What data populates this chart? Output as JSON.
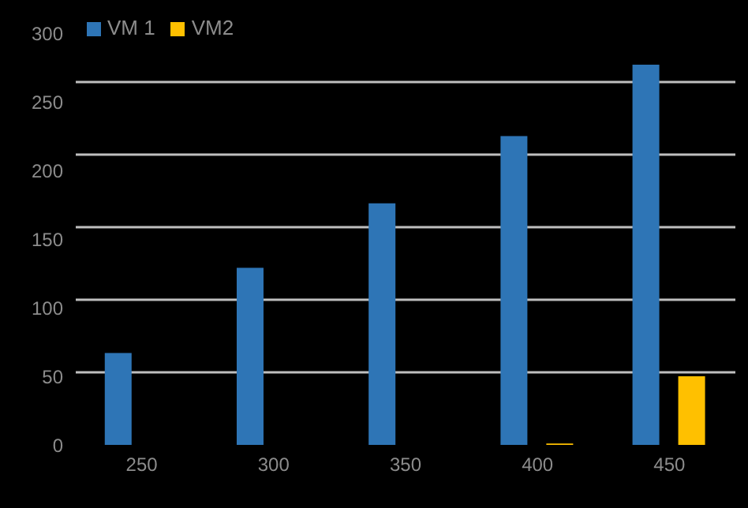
{
  "chart_data": {
    "type": "bar",
    "categories": [
      "250",
      "300",
      "350",
      "400",
      "450"
    ],
    "series": [
      {
        "name": "VM 1",
        "color": "#2e75b6",
        "values": [
          67,
          129,
          176,
          225,
          277
        ]
      },
      {
        "name": "VM2",
        "color": "#ffc000",
        "values": [
          0,
          0,
          0,
          1,
          50
        ]
      }
    ],
    "ylim": [
      0,
      300
    ],
    "yticks": [
      0,
      50,
      100,
      150,
      200,
      250,
      300
    ],
    "grid": "y",
    "legend": "top left"
  }
}
